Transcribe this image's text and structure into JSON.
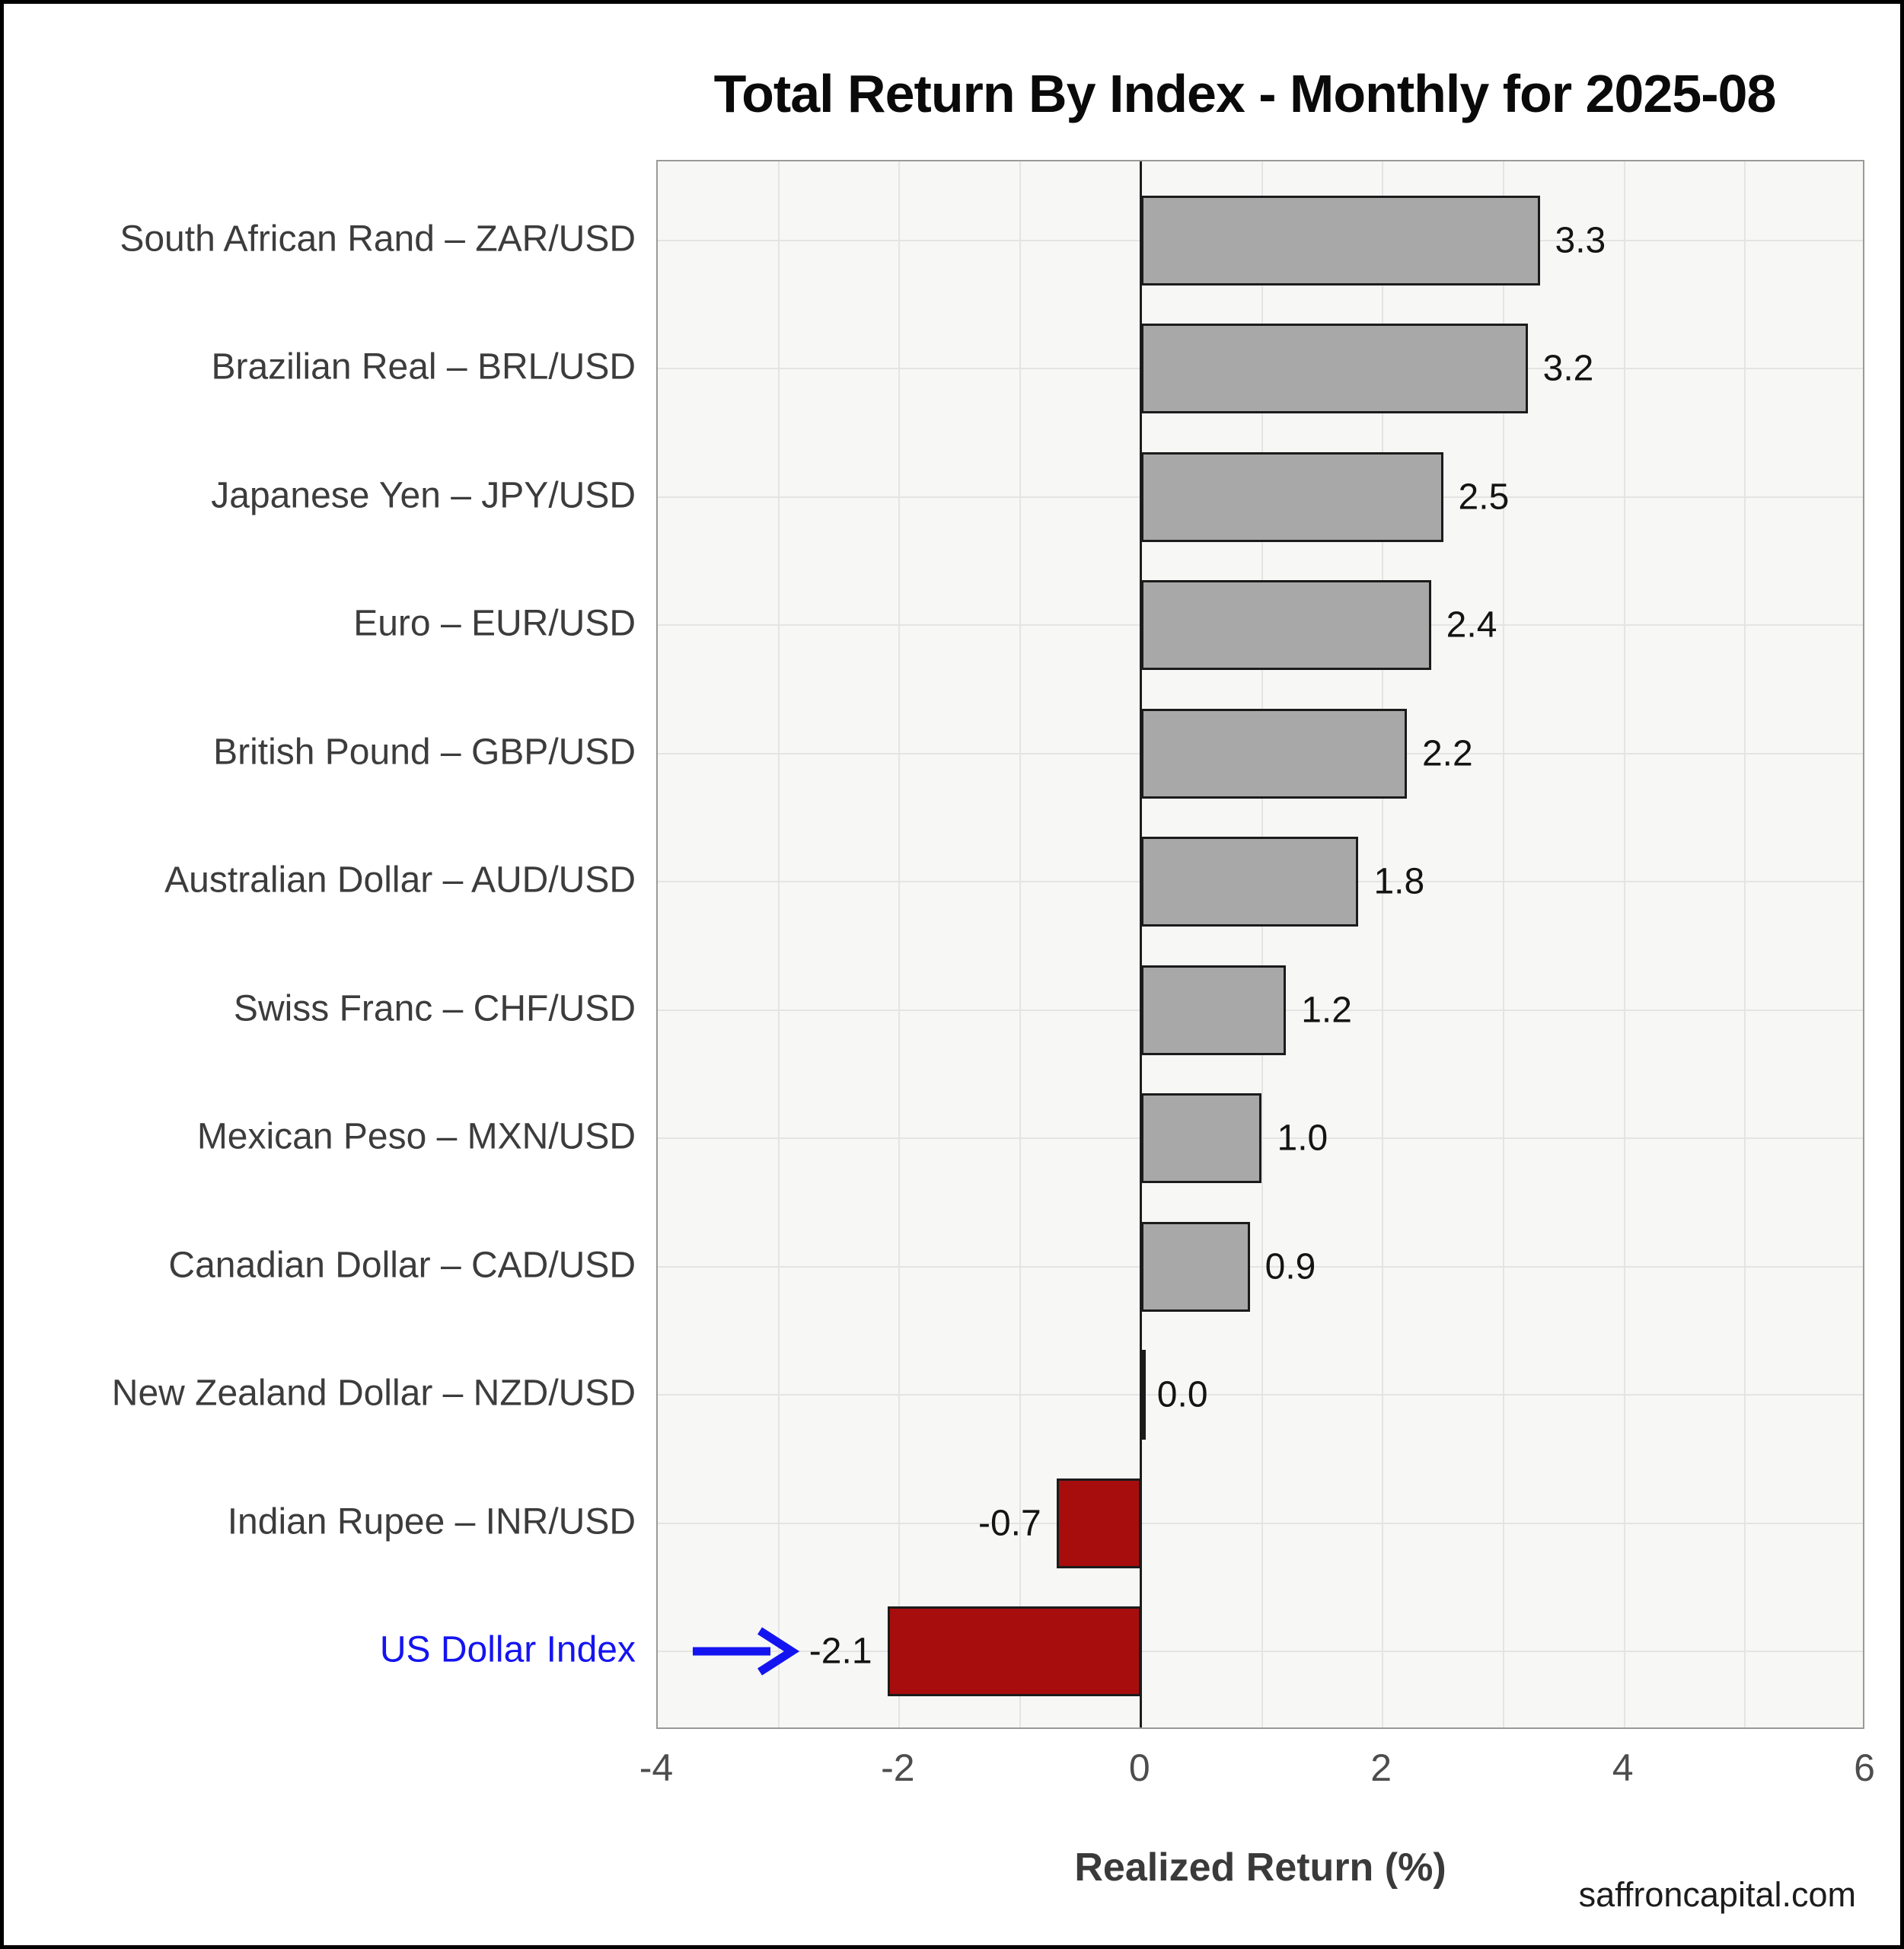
{
  "title": "Total Return By Index - Monthly for 2025-08",
  "footer": {
    "watermark": "saffroncapital.com"
  },
  "chart_data": {
    "type": "bar",
    "orientation": "horizontal",
    "title": "Total Return By Index - Monthly for 2025-08",
    "categories": [
      "South African Rand – ZAR/USD",
      "Brazilian Real – BRL/USD",
      "Japanese Yen – JPY/USD",
      "Euro – EUR/USD",
      "British Pound – GBP/USD",
      "Australian Dollar – AUD/USD",
      "Swiss Franc – CHF/USD",
      "Mexican Peso – MXN/USD",
      "Canadian Dollar – CAD/USD",
      "New Zealand Dollar – NZD/USD",
      "Indian Rupee – INR/USD",
      "US Dollar Index"
    ],
    "values": [
      3.3,
      3.2,
      2.5,
      2.4,
      2.2,
      1.8,
      1.2,
      1.0,
      0.9,
      0.0,
      -0.7,
      -2.1
    ],
    "value_labels": [
      "3.3",
      "3.2",
      "2.5",
      "2.4",
      "2.2",
      "1.8",
      "1.2",
      "1.0",
      "0.9",
      "0.0",
      "-0.7",
      "-2.1"
    ],
    "xlabel": "Realized Return (%)",
    "xlim": [
      -4,
      6
    ],
    "xticks": [
      -4,
      -2,
      0,
      2,
      4,
      6
    ],
    "xtick_labels": [
      "-4",
      "-2",
      "0",
      "2",
      "4",
      "6"
    ],
    "grid": true,
    "legend": "none",
    "highlight": {
      "category": "US Dollar Index",
      "color": "#1414f0",
      "annotation": "blue right-arrow pointing at highlighted bar"
    },
    "colors": {
      "positive_bar": "#a8a8a8",
      "negative_bar": "#a80d0d",
      "bar_edge": "#1b1b1b",
      "plot_background": "#f7f7f6",
      "gridline": "#e4e4e4",
      "zero_line": "#1c1c1c",
      "highlight_blue": "#1414f0"
    }
  }
}
